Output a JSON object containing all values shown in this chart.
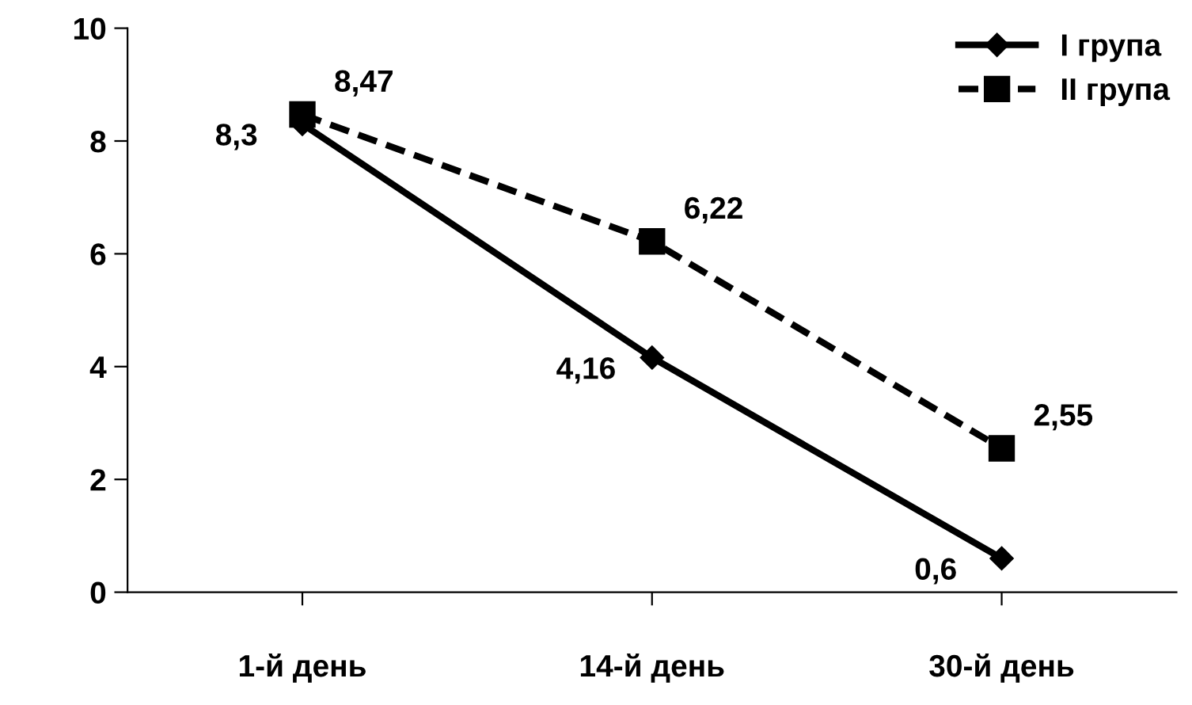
{
  "chart_data": {
    "type": "line",
    "categories": [
      "1-й день",
      "14-й день",
      "30-й день"
    ],
    "series": [
      {
        "name": "I група",
        "color": "#000000",
        "values": [
          8.3,
          4.16,
          0.6
        ],
        "value_labels": [
          "8,3",
          "4,16",
          "0,6"
        ],
        "marker": "diamond",
        "line_style": "solid"
      },
      {
        "name": "II група",
        "color": "#000000",
        "values": [
          8.47,
          6.22,
          2.55
        ],
        "value_labels": [
          "8,47",
          "6,22",
          "2,55"
        ],
        "marker": "square",
        "line_style": "dashed"
      }
    ],
    "ylim": [
      0,
      10
    ],
    "yticks": [
      0,
      2,
      4,
      6,
      8,
      10
    ],
    "grid": false,
    "legend": "top right"
  }
}
